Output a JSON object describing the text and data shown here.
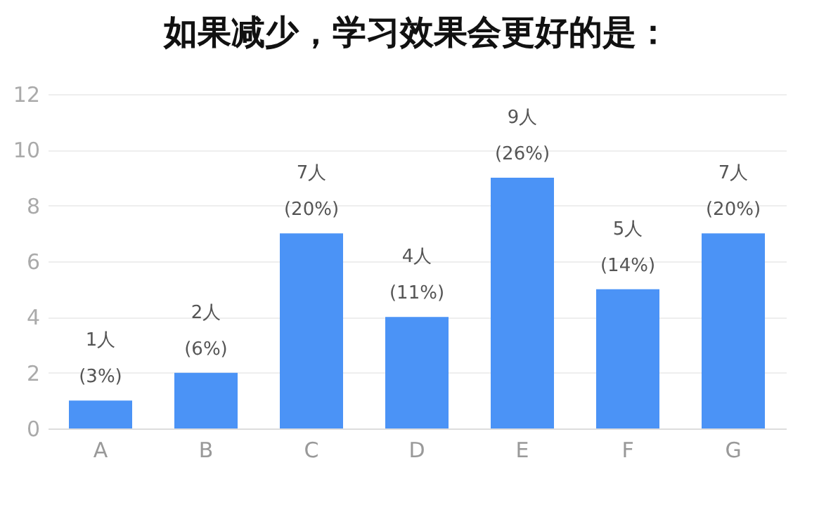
{
  "chart_data": {
    "type": "bar",
    "title": "如果减少，学习效果会更好的是：",
    "categories": [
      "A",
      "B",
      "C",
      "D",
      "E",
      "F",
      "G"
    ],
    "series": [
      {
        "color": "#4b93f6",
        "values": [
          1,
          2,
          7,
          4,
          9,
          5,
          7
        ]
      }
    ],
    "value_labels": [
      "1人\n(3%)",
      "2人\n(6%)",
      "7人\n(20%)",
      "4人\n(11%)",
      "9人\n(26%)",
      "5人\n(14%)",
      "7人\n(20%)"
    ],
    "ylim": [
      0,
      12
    ],
    "yticks": [
      0,
      2,
      4,
      6,
      8,
      10,
      12
    ],
    "grid": "y"
  }
}
